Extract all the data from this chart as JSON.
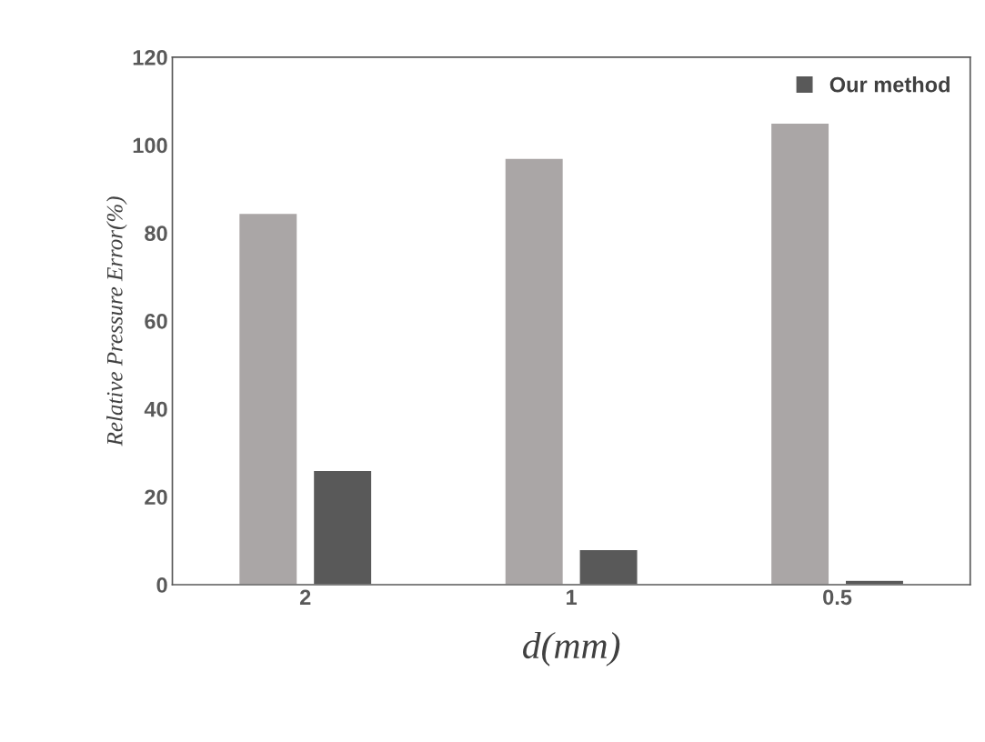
{
  "chart_data": {
    "type": "bar",
    "categories": [
      "2",
      "1",
      "0.5"
    ],
    "series": [
      {
        "color": "#aaa6a6",
        "values": [
          84.5,
          97,
          105
        ]
      },
      {
        "name": "Our method",
        "color": "#595959",
        "values": [
          26,
          8,
          1
        ]
      }
    ],
    "xlabel": "d(mm)",
    "ylabel": "Relative Pressure Error(%)",
    "ylim": [
      0,
      120
    ],
    "yticks": [
      0,
      20,
      40,
      60,
      80,
      100,
      120
    ],
    "legend": "top right",
    "grid": false
  }
}
